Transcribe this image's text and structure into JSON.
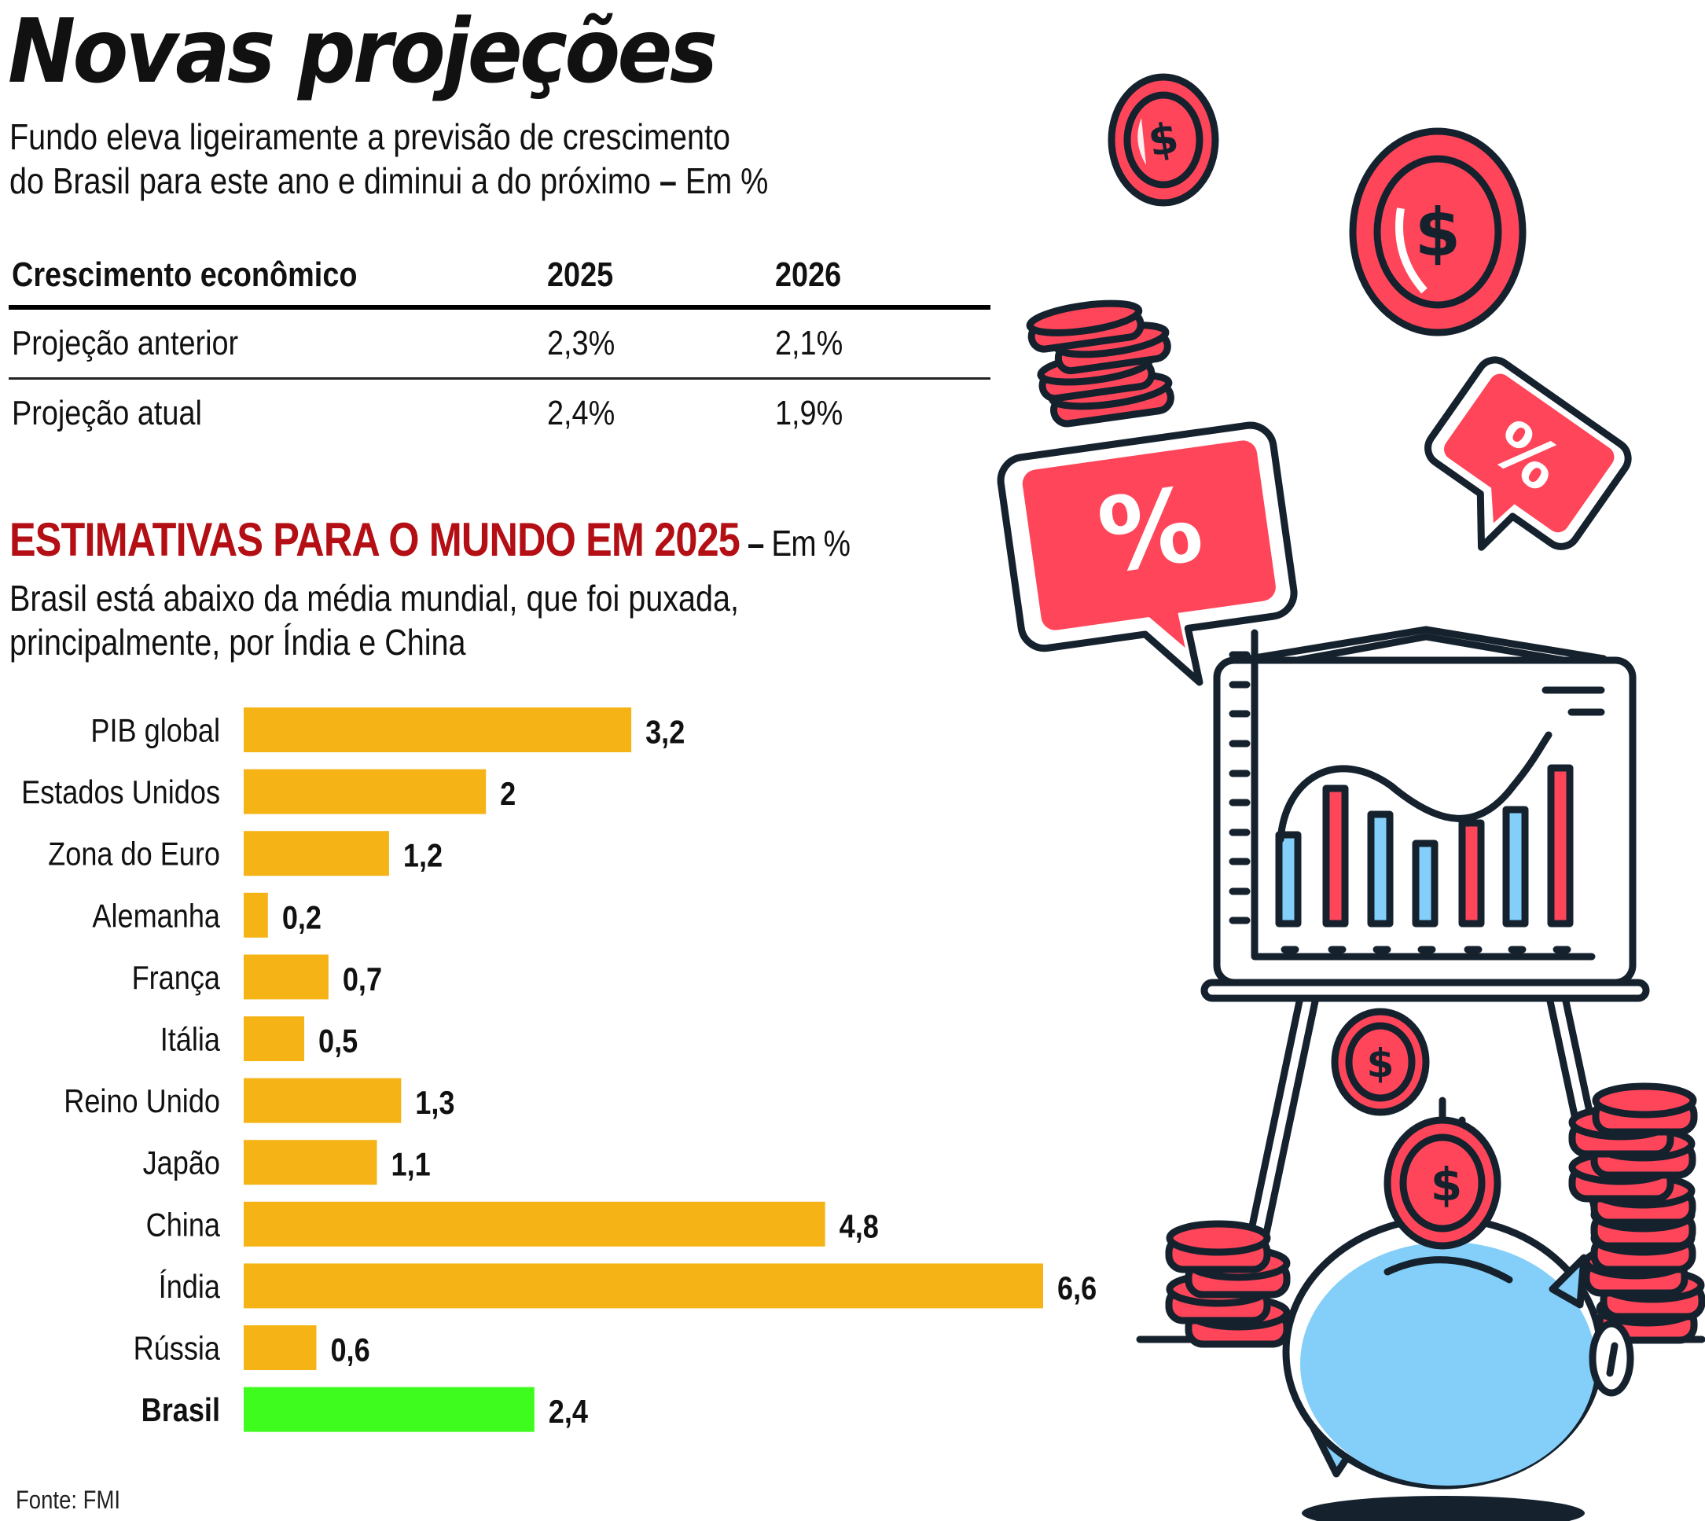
{
  "header": {
    "title": "Novas projeções",
    "subtitle_line1": "Fundo eleva ligeiramente a previsão de crescimento",
    "subtitle_line2": "do Brasil para este ano e diminui a do próximo",
    "subtitle_dash": " – ",
    "subtitle_unit": "Em %"
  },
  "table": {
    "columns": [
      "Crescimento econômico",
      "2025",
      "2026"
    ],
    "rows": [
      {
        "label": "Projeção anterior",
        "y2025": "2,3%",
        "y2026": "2,1%"
      },
      {
        "label": "Projeção atual",
        "y2025": "2,4%",
        "y2026": "1,9%"
      }
    ]
  },
  "section": {
    "title": "ESTIMATIVAS PARA O MUNDO EM 2025",
    "title_dash": " – ",
    "title_unit": "Em %",
    "subtitle_line1": "Brasil está abaixo da média mundial, que foi puxada,",
    "subtitle_line2": "principalmente, por Índia e China"
  },
  "colors": {
    "bar": "#f5b316",
    "highlight_bar": "#3ffc1f",
    "section_title": "#b30f14",
    "illustration_red": "#ff4559",
    "illustration_blue": "#84cffa",
    "illustration_outline": "#15222e"
  },
  "chart_data": {
    "type": "bar",
    "orientation": "horizontal",
    "title": "ESTIMATIVAS PARA O MUNDO EM 2025",
    "xlabel": "",
    "ylabel": "",
    "unit": "%",
    "categories": [
      "PIB global",
      "Estados Unidos",
      "Zona do Euro",
      "Alemanha",
      "França",
      "Itália",
      "Reino Unido",
      "Japão",
      "China",
      "Índia",
      "Rússia",
      "Brasil"
    ],
    "values": [
      3.2,
      2.0,
      1.2,
      0.2,
      0.7,
      0.5,
      1.3,
      1.1,
      4.8,
      6.6,
      0.6,
      2.4
    ],
    "value_labels": [
      "3,2",
      "2",
      "1,2",
      "0,2",
      "0,7",
      "0,5",
      "1,3",
      "1,1",
      "4,8",
      "6,6",
      "0,6",
      "2,4"
    ],
    "highlight": "Brasil",
    "xlim": [
      0,
      6.6
    ],
    "grid": false,
    "legend": "none"
  },
  "footer": {
    "source": "Fonte: FMI"
  },
  "illustration": {
    "items": [
      "dollar-coin",
      "dollar-coin",
      "percent-speech-bubble",
      "coin-stack",
      "percent-speech-bubble",
      "presentation-easel-chart",
      "piggy-bank",
      "dollar-coin",
      "dollar-coin",
      "coin-stack",
      "coin-stack"
    ],
    "dollar_symbol": "$",
    "percent_symbol": "%"
  }
}
